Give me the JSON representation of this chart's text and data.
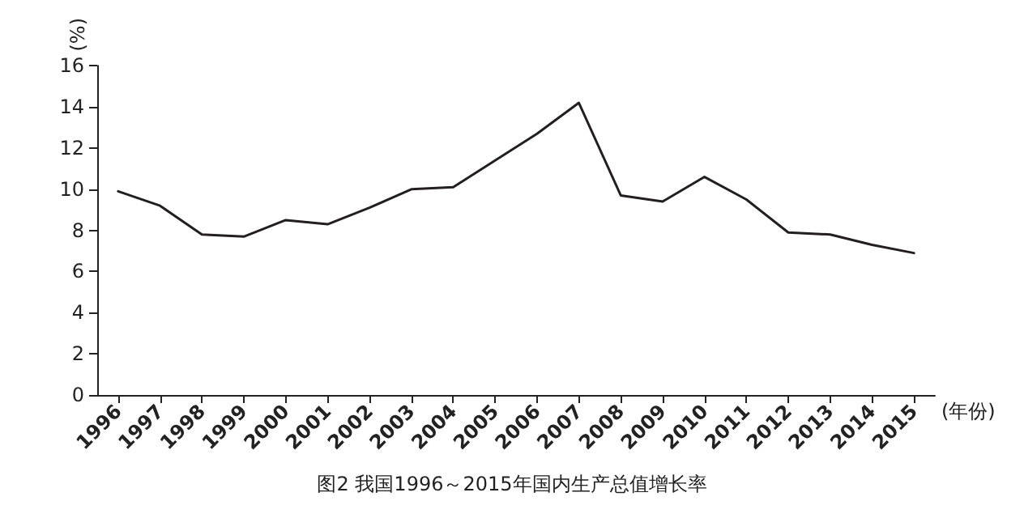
{
  "chart_data": {
    "type": "line",
    "title": "图2 我国1996～2015年国内生产总值增长率",
    "xlabel": "(年份)",
    "ylabel": "(%)",
    "categories": [
      "1996",
      "1997",
      "1998",
      "1999",
      "2000",
      "2001",
      "2002",
      "2003",
      "2004",
      "2005",
      "2006",
      "2007",
      "2008",
      "2009",
      "2010",
      "2011",
      "2012",
      "2013",
      "2014",
      "2015"
    ],
    "series": [
      {
        "color": "#231f20",
        "values": [
          9.9,
          9.2,
          7.8,
          7.7,
          8.5,
          8.3,
          9.1,
          10.0,
          10.1,
          11.4,
          12.7,
          14.2,
          9.7,
          9.4,
          10.6,
          9.5,
          7.9,
          7.8,
          7.3,
          6.9
        ]
      }
    ],
    "ylim": [
      0,
      16
    ],
    "yticks": [
      0,
      2,
      4,
      6,
      8,
      10,
      12,
      14,
      16
    ],
    "grid": false,
    "marker": "none",
    "line_style": "solid"
  }
}
